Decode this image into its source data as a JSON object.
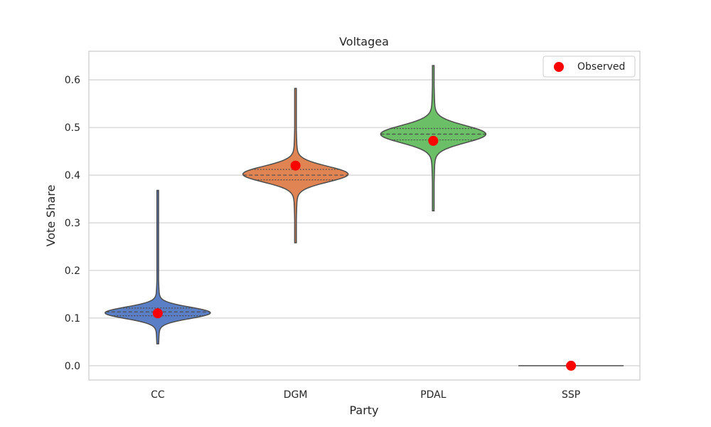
{
  "chart_data": {
    "type": "violin",
    "title": "Voltagea",
    "xlabel": "Party",
    "ylabel": "Vote Share",
    "ylim": [
      -0.03,
      0.66
    ],
    "yticks": [
      0.0,
      0.1,
      0.2,
      0.3,
      0.4,
      0.5,
      0.6
    ],
    "ytick_labels": [
      "0.0",
      "0.1",
      "0.2",
      "0.3",
      "0.4",
      "0.5",
      "0.6"
    ],
    "categories": [
      "CC",
      "DGM",
      "PDAL",
      "SSP"
    ],
    "grid": true,
    "legend": {
      "position": "top-right",
      "entries": [
        {
          "label": "Observed",
          "marker": "circle",
          "color": "#ff0000"
        }
      ]
    },
    "violins": [
      {
        "category": "CC",
        "color": "#5b7fc7",
        "min": 0.046,
        "max": 0.368,
        "q1": 0.105,
        "median": 0.113,
        "q3": 0.121,
        "mode": 0.111
      },
      {
        "category": "DGM",
        "color": "#e08453",
        "min": 0.258,
        "max": 0.582,
        "q1": 0.39,
        "median": 0.4,
        "q3": 0.412,
        "mode": 0.402
      },
      {
        "category": "PDAL",
        "color": "#6bbf66",
        "min": 0.325,
        "max": 0.63,
        "q1": 0.474,
        "median": 0.486,
        "q3": 0.498,
        "mode": 0.486
      },
      {
        "category": "SSP",
        "color": "#888888",
        "min": 0.0,
        "max": 0.0,
        "q1": 0.0,
        "median": 0.0,
        "q3": 0.0,
        "mode": 0.0
      }
    ],
    "observed": [
      {
        "category": "CC",
        "value": 0.11
      },
      {
        "category": "DGM",
        "value": 0.42
      },
      {
        "category": "PDAL",
        "value": 0.472
      },
      {
        "category": "SSP",
        "value": 0.0
      }
    ]
  },
  "colors": {
    "observed": "#ff0000",
    "grid": "#cccccc",
    "outline": "#4d4d4d",
    "frame": "#cccccc"
  }
}
